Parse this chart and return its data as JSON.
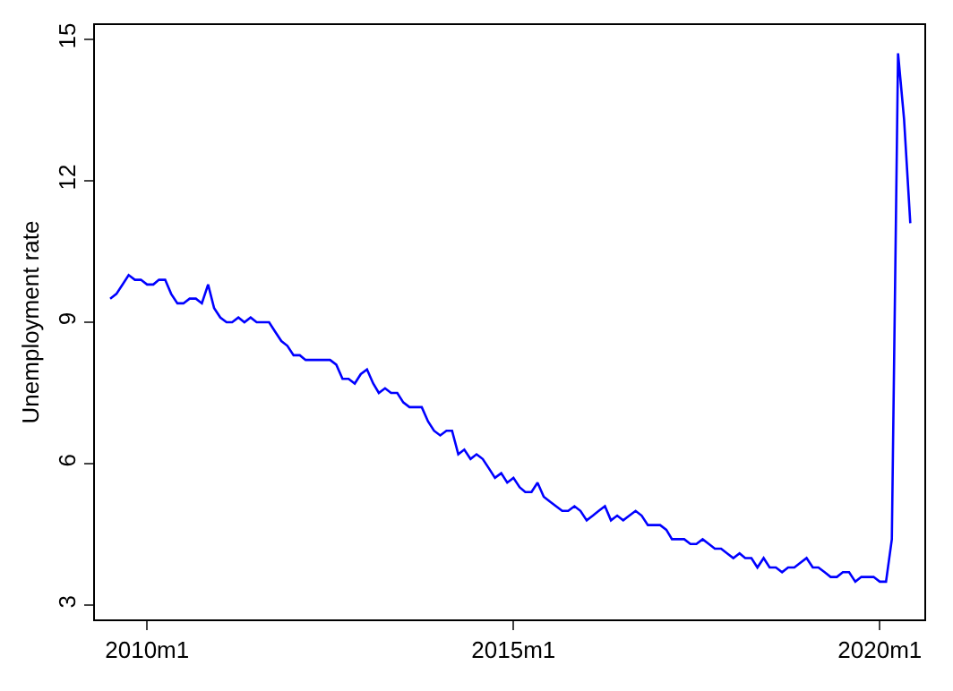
{
  "chart_data": {
    "type": "line",
    "ylabel": "Unemployment rate",
    "x": [
      "2009-07",
      "2009-08",
      "2009-09",
      "2009-10",
      "2009-11",
      "2009-12",
      "2010-01",
      "2010-02",
      "2010-03",
      "2010-04",
      "2010-05",
      "2010-06",
      "2010-07",
      "2010-08",
      "2010-09",
      "2010-10",
      "2010-11",
      "2010-12",
      "2011-01",
      "2011-02",
      "2011-03",
      "2011-04",
      "2011-05",
      "2011-06",
      "2011-07",
      "2011-08",
      "2011-09",
      "2011-10",
      "2011-11",
      "2011-12",
      "2012-01",
      "2012-02",
      "2012-03",
      "2012-04",
      "2012-05",
      "2012-06",
      "2012-07",
      "2012-08",
      "2012-09",
      "2012-10",
      "2012-11",
      "2012-12",
      "2013-01",
      "2013-02",
      "2013-03",
      "2013-04",
      "2013-05",
      "2013-06",
      "2013-07",
      "2013-08",
      "2013-09",
      "2013-10",
      "2013-11",
      "2013-12",
      "2014-01",
      "2014-02",
      "2014-03",
      "2014-04",
      "2014-05",
      "2014-06",
      "2014-07",
      "2014-08",
      "2014-09",
      "2014-10",
      "2014-11",
      "2014-12",
      "2015-01",
      "2015-02",
      "2015-03",
      "2015-04",
      "2015-05",
      "2015-06",
      "2015-07",
      "2015-08",
      "2015-09",
      "2015-10",
      "2015-11",
      "2015-12",
      "2016-01",
      "2016-02",
      "2016-03",
      "2016-04",
      "2016-05",
      "2016-06",
      "2016-07",
      "2016-08",
      "2016-09",
      "2016-10",
      "2016-11",
      "2016-12",
      "2017-01",
      "2017-02",
      "2017-03",
      "2017-04",
      "2017-05",
      "2017-06",
      "2017-07",
      "2017-08",
      "2017-09",
      "2017-10",
      "2017-11",
      "2017-12",
      "2018-01",
      "2018-02",
      "2018-03",
      "2018-04",
      "2018-05",
      "2018-06",
      "2018-07",
      "2018-08",
      "2018-09",
      "2018-10",
      "2018-11",
      "2018-12",
      "2019-01",
      "2019-02",
      "2019-03",
      "2019-04",
      "2019-05",
      "2019-06",
      "2019-07",
      "2019-08",
      "2019-09",
      "2019-10",
      "2019-11",
      "2019-12",
      "2020-01",
      "2020-02",
      "2020-03",
      "2020-04",
      "2020-05",
      "2020-06"
    ],
    "series": [
      {
        "color": "#0000ff",
        "values": [
          9.5,
          9.6,
          9.8,
          10.0,
          9.9,
          9.9,
          9.8,
          9.8,
          9.9,
          9.9,
          9.6,
          9.4,
          9.4,
          9.5,
          9.5,
          9.4,
          9.8,
          9.3,
          9.1,
          9.0,
          9.0,
          9.1,
          9.0,
          9.1,
          9.0,
          9.0,
          9.0,
          8.8,
          8.6,
          8.5,
          8.3,
          8.3,
          8.2,
          8.2,
          8.2,
          8.2,
          8.2,
          8.1,
          7.8,
          7.8,
          7.7,
          7.9,
          8.0,
          7.7,
          7.5,
          7.6,
          7.5,
          7.5,
          7.3,
          7.2,
          7.2,
          7.2,
          6.9,
          6.7,
          6.6,
          6.7,
          6.7,
          6.2,
          6.3,
          6.1,
          6.2,
          6.1,
          5.9,
          5.7,
          5.8,
          5.6,
          5.7,
          5.5,
          5.4,
          5.4,
          5.6,
          5.3,
          5.2,
          5.1,
          5.0,
          5.0,
          5.1,
          5.0,
          4.8,
          4.9,
          5.0,
          5.1,
          4.8,
          4.9,
          4.8,
          4.9,
          5.0,
          4.9,
          4.7,
          4.7,
          4.7,
          4.6,
          4.4,
          4.4,
          4.4,
          4.3,
          4.3,
          4.4,
          4.3,
          4.2,
          4.2,
          4.1,
          4.0,
          4.1,
          4.0,
          4.0,
          3.8,
          4.0,
          3.8,
          3.8,
          3.7,
          3.8,
          3.8,
          3.9,
          4.0,
          3.8,
          3.8,
          3.7,
          3.6,
          3.6,
          3.7,
          3.7,
          3.5,
          3.6,
          3.6,
          3.6,
          3.5,
          3.5,
          4.4,
          14.7,
          13.3,
          11.1
        ]
      }
    ],
    "xlim": [
      "2009-04-16",
      "2020-08-10"
    ],
    "xticks": [
      {
        "value": "2010-01",
        "label": "2010m1"
      },
      {
        "value": "2015-01",
        "label": "2015m1"
      },
      {
        "value": "2020-01",
        "label": "2020m1"
      }
    ],
    "ylim": [
      2.7,
      15.3
    ],
    "yticks": [
      3,
      6,
      9,
      12,
      15
    ],
    "legend": false,
    "marker": "none",
    "line_style": "solid"
  }
}
